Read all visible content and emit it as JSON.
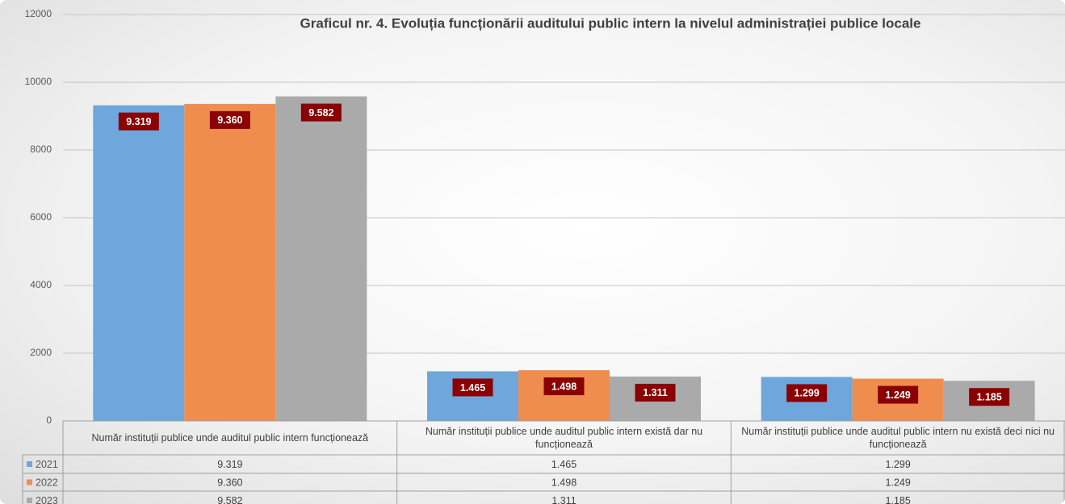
{
  "chart_data": {
    "type": "bar",
    "title": "Graficul nr. 4. Evoluția funcționării auditului public intern la nivelul administrației publice locale",
    "categories": [
      "Număr instituții publice unde auditul public intern funcționează",
      "Număr instituții publice unde auditul public intern există dar nu funcționează",
      "Număr instituții publice unde auditul public intern nu există deci nici nu funcționează"
    ],
    "series": [
      {
        "name": "2021",
        "color": "#6fa6dc",
        "values": [
          9319,
          1465,
          1299
        ],
        "value_labels": [
          "9.319",
          "1.465",
          "1.299"
        ]
      },
      {
        "name": "2022",
        "color": "#ef8d4e",
        "values": [
          9360,
          1498,
          1249
        ],
        "value_labels": [
          "9.360",
          "1.498",
          "1.249"
        ]
      },
      {
        "name": "2023",
        "color": "#aaaaaa",
        "values": [
          9582,
          1311,
          1185
        ],
        "value_labels": [
          "9.582",
          "1.311",
          "1.185"
        ]
      }
    ],
    "ylim": [
      0,
      12000
    ],
    "yticks": [
      0,
      2000,
      4000,
      6000,
      8000,
      10000,
      12000
    ],
    "grid": true,
    "label_color": "#8b0000"
  }
}
